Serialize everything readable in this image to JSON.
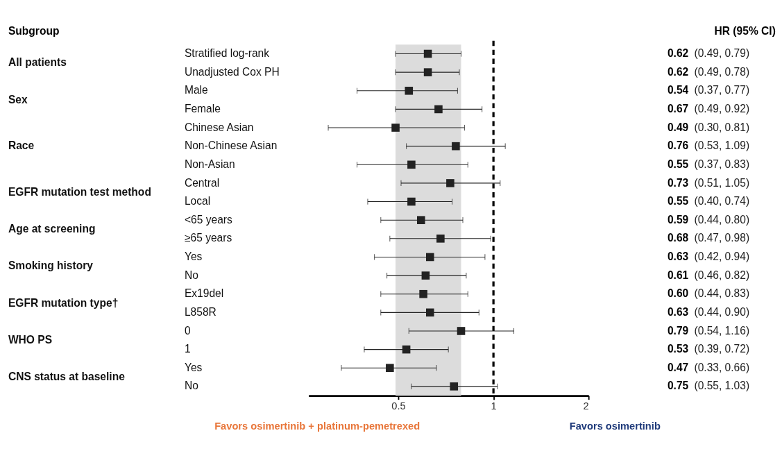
{
  "chart_data": {
    "type": "scatter",
    "orientation": "horizontal",
    "log": "x",
    "marker": "square",
    "categories": [
      "Stratified log-rank",
      "Unadjusted Cox PH",
      "Male",
      "Female",
      "Chinese Asian",
      "Non-Chinese Asian",
      "Non-Asian",
      "Central",
      "Local",
      "<65 years",
      "≥65 years",
      "Yes",
      "No",
      "Ex19del",
      "L858R",
      "0",
      "1",
      "Yes",
      "No"
    ],
    "series": [
      {
        "color": "#222222",
        "values": [
          0.62,
          0.62,
          0.54,
          0.67,
          0.49,
          0.76,
          0.55,
          0.73,
          0.55,
          0.59,
          0.68,
          0.63,
          0.61,
          0.6,
          0.63,
          0.79,
          0.53,
          0.47,
          0.75
        ],
        "errors": [
          [
            0.49,
            0.79
          ],
          [
            0.49,
            0.78
          ],
          [
            0.37,
            0.77
          ],
          [
            0.49,
            0.92
          ],
          [
            0.3,
            0.81
          ],
          [
            0.53,
            1.09
          ],
          [
            0.37,
            0.83
          ],
          [
            0.51,
            1.05
          ],
          [
            0.4,
            0.74
          ],
          [
            0.44,
            0.8
          ],
          [
            0.47,
            0.98
          ],
          [
            0.42,
            0.94
          ],
          [
            0.46,
            0.82
          ],
          [
            0.44,
            0.83
          ],
          [
            0.44,
            0.9
          ],
          [
            0.54,
            1.16
          ],
          [
            0.39,
            0.72
          ],
          [
            0.33,
            0.66
          ],
          [
            0.55,
            1.03
          ]
        ],
        "value_labels": [
          "0.62 (0.49, 0.79)",
          "0.62 (0.49, 0.78)",
          "0.54 (0.37, 0.77)",
          "0.67 (0.49, 0.92)",
          "0.49 (0.30, 0.81)",
          "0.76 (0.53, 1.09)",
          "0.55 (0.37, 0.83)",
          "0.73 (0.51, 1.05)",
          "0.55 (0.40, 0.74)",
          "0.59 (0.44, 0.80)",
          "0.68 (0.47, 0.98)",
          "0.63 (0.42, 0.94)",
          "0.61 (0.46, 0.82)",
          "0.60 (0.44, 0.83)",
          "0.63 (0.44, 0.90)",
          "0.79 (0.54, 1.16)",
          "0.53 (0.39, 0.72)",
          "0.47 (0.33, 0.66)",
          "0.75 (0.55, 1.03)"
        ]
      }
    ],
    "xlim": [
      0.26,
      2
    ],
    "xticks": [
      0.5,
      1,
      2
    ],
    "grid": false,
    "ref_lines": [
      {
        "axis": "x",
        "value": 1,
        "line_style": "dashed",
        "color": "#000000"
      }
    ],
    "bands": [
      {
        "axis": "x",
        "from": 0.49,
        "to": 0.79,
        "color": "#dcdcdc"
      }
    ],
    "annotations": [
      "All patients",
      "Sex",
      "Race",
      "EGFR mutation test method",
      "Age at screening",
      "Smoking history",
      "EGFR mutation type†",
      "WHO PS",
      "CNS status at baseline",
      "Subgroup",
      "HR (95% CI)",
      "Favors osimertinib + platinum-pemetrexed",
      "Favors osimertinib"
    ]
  }
}
